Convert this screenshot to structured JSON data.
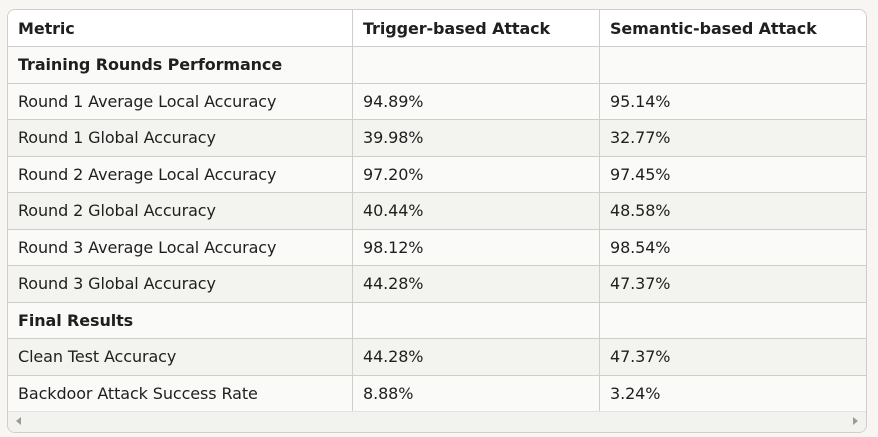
{
  "table": {
    "headers": [
      "Metric",
      "Trigger-based Attack",
      "Semantic-based Attack"
    ],
    "rows": [
      {
        "cells": [
          "Training Rounds Performance",
          "",
          ""
        ],
        "section": true
      },
      {
        "cells": [
          "Round 1 Average Local Accuracy",
          "94.89%",
          "95.14%"
        ]
      },
      {
        "cells": [
          "Round 1 Global Accuracy",
          "39.98%",
          "32.77%"
        ]
      },
      {
        "cells": [
          "Round 2 Average Local Accuracy",
          "97.20%",
          "97.45%"
        ]
      },
      {
        "cells": [
          "Round 2 Global Accuracy",
          "40.44%",
          "48.58%"
        ]
      },
      {
        "cells": [
          "Round 3 Average Local Accuracy",
          "98.12%",
          "98.54%"
        ]
      },
      {
        "cells": [
          "Round 3 Global Accuracy",
          "44.28%",
          "47.37%"
        ]
      },
      {
        "cells": [
          "Final Results",
          "",
          ""
        ],
        "section": true
      },
      {
        "cells": [
          "Clean Test Accuracy",
          "44.28%",
          "47.37%"
        ]
      },
      {
        "cells": [
          "Backdoor Attack Success Rate",
          "8.88%",
          "3.24%"
        ]
      }
    ]
  },
  "scrollbar": {
    "left_icon": "chevron-left-icon",
    "right_icon": "chevron-right-icon"
  }
}
